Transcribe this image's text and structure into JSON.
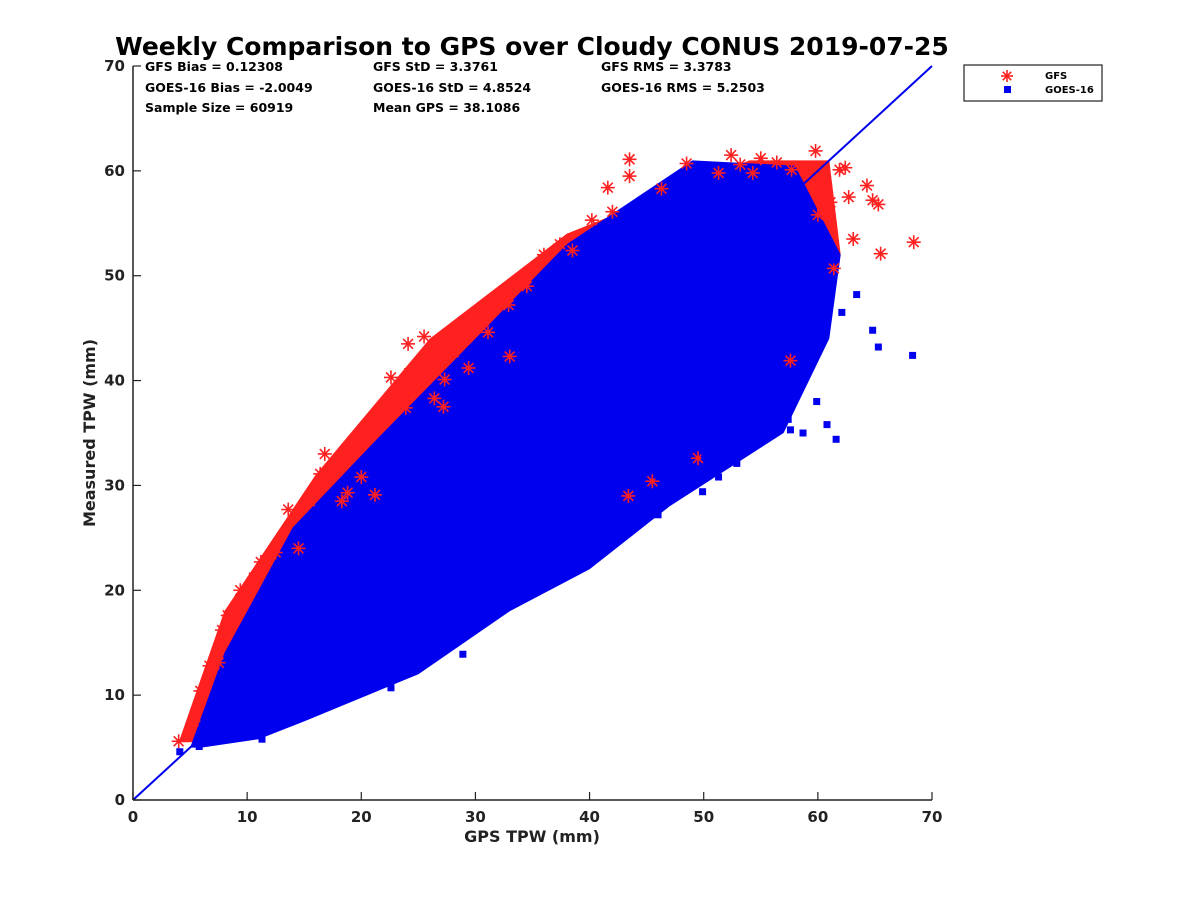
{
  "chart_data": {
    "type": "scatter",
    "title": "Weekly Comparison to GPS over Cloudy CONUS 2019-07-25",
    "xlabel": "GPS TPW (mm)",
    "ylabel": "Measured TPW (mm)",
    "xlim": [
      0,
      70
    ],
    "ylim": [
      0,
      70
    ],
    "x_ticks": [
      "0",
      "10",
      "20",
      "30",
      "40",
      "50",
      "60",
      "70"
    ],
    "y_ticks": [
      "0",
      "10",
      "20",
      "30",
      "40",
      "50",
      "60",
      "70"
    ],
    "grid": false,
    "legend_position": "outside top-right",
    "reference_line": {
      "x": [
        0,
        70
      ],
      "y": [
        0,
        70
      ],
      "color": "#0000ee"
    },
    "stats": {
      "gfs_bias": "GFS Bias = 0.12308",
      "goes_bias": "GOES-16 Bias = -2.0049",
      "sample_size": "Sample Size = 60919",
      "gfs_std": "GFS StD = 3.3761",
      "goes_std": "GOES-16 StD = 4.8524",
      "mean_gps": "Mean GPS = 38.1086",
      "gfs_rms": "GFS RMS = 3.3783",
      "goes_rms": "GOES-16 RMS = 5.2503"
    },
    "series": [
      {
        "name": "GFS",
        "marker": "asterisk",
        "color": "#ff2020",
        "cloud": [
          [
            [
              4,
              5.5
            ],
            [
              8,
              18
            ],
            [
              16,
              31
            ],
            [
              26,
              44
            ],
            [
              38,
              54
            ],
            [
              54,
              61
            ],
            [
              61,
              61
            ],
            [
              62,
              52
            ],
            [
              58,
              42
            ],
            [
              46,
              30
            ],
            [
              36,
              22
            ],
            [
              24,
              12
            ],
            [
              10,
              6
            ],
            [
              5,
              5.5
            ]
          ]
        ],
        "x": [
          4.0,
          5.3,
          5.9,
          6.7,
          7.5,
          8.3,
          7.8,
          9.4,
          10.6,
          11.2,
          12.5,
          13.6,
          14.5,
          15.5,
          16.4,
          16.8,
          18.8,
          20.0,
          21.6,
          22.6,
          24.1,
          23.9,
          25.5,
          26.6,
          27.3,
          28.1,
          29.4,
          31.1,
          32.9,
          34.5,
          36.0,
          37.4,
          40.2,
          41.6,
          42.0,
          43.5,
          43.5,
          46.3,
          48.5,
          51.3,
          52.4,
          53.2,
          54.3,
          55.0,
          56.4,
          57.7,
          59.8,
          60.5,
          61.1,
          61.9,
          62.4,
          62.7,
          63.1,
          64.3,
          64.8,
          65.3,
          65.5,
          68.4,
          61.4,
          60.0,
          57.6,
          43.4,
          45.5,
          49.5,
          38.5,
          24.2,
          18.3,
          21.2,
          27.2,
          26.4,
          33.0
        ],
        "y": [
          5.6,
          7.5,
          10.4,
          12.8,
          13.1,
          17.6,
          16.2,
          20.0,
          21.2,
          22.7,
          23.6,
          27.7,
          24.0,
          28.5,
          31.1,
          33.0,
          29.3,
          30.8,
          37.0,
          40.3,
          43.5,
          37.4,
          44.2,
          42.2,
          40.1,
          42.7,
          41.2,
          44.6,
          47.2,
          49.0,
          52.0,
          53.0,
          55.3,
          58.4,
          56.1,
          61.1,
          59.5,
          58.3,
          60.7,
          59.8,
          61.5,
          60.6,
          59.8,
          61.2,
          60.8,
          60.1,
          61.9,
          58.5,
          57.0,
          60.1,
          60.3,
          57.5,
          53.5,
          58.6,
          57.2,
          56.8,
          52.1,
          53.2,
          50.7,
          55.8,
          41.9,
          29.0,
          30.4,
          32.6,
          52.4,
          40.7,
          28.5,
          29.1,
          37.5,
          38.3,
          42.3
        ]
      },
      {
        "name": "GOES-16",
        "marker": "square",
        "color": "#0000ee",
        "cloud": [
          [
            [
              5,
              5
            ],
            [
              8,
              14
            ],
            [
              14,
              26
            ],
            [
              21,
              34
            ],
            [
              30,
              44
            ],
            [
              38,
              53
            ],
            [
              49,
              61
            ],
            [
              58,
              60.5
            ],
            [
              62,
              52
            ],
            [
              61,
              44
            ],
            [
              57,
              35
            ],
            [
              47,
              28
            ],
            [
              40,
              22
            ],
            [
              33,
              18
            ],
            [
              25,
              12
            ],
            [
              15,
              7.5
            ],
            [
              11,
              5.8
            ],
            [
              6,
              5
            ]
          ]
        ],
        "x": [
          4.1,
          5.8,
          8.5,
          11.3,
          12.1,
          13.9,
          16.6,
          17.2,
          19.0,
          22.6,
          24.1,
          25.7,
          28.9,
          30.2,
          32.1,
          33.6,
          35.1,
          37.2,
          38.9,
          40.4,
          42.0,
          44.2,
          46.0,
          47.8,
          49.9,
          51.3,
          52.9,
          54.2,
          55.9,
          57.4,
          58.7,
          59.9,
          60.8,
          61.6,
          62.1,
          63.4,
          64.8,
          65.3,
          68.3,
          61.2,
          60.1,
          57.7,
          55.3,
          52.6,
          49.8,
          46.0,
          45.9,
          43.5,
          40.5,
          38.2,
          36.7,
          34.0,
          30.2,
          28.7,
          26.3,
          23.6,
          22.3,
          20.4,
          18.0,
          16.3,
          14.3,
          12.2,
          11.2,
          9.5,
          47.3,
          50.1,
          53.6,
          57.6
        ],
        "y": [
          4.6,
          5.1,
          6.3,
          5.8,
          7.4,
          8.9,
          9.9,
          11.8,
          12.1,
          10.7,
          13.5,
          13.7,
          13.9,
          16.5,
          19.0,
          21.3,
          20.7,
          22.9,
          22.5,
          24.5,
          25.2,
          26.8,
          27.2,
          30.5,
          29.4,
          30.8,
          32.1,
          33.6,
          35.1,
          36.3,
          35.0,
          38.0,
          35.8,
          34.4,
          46.5,
          48.2,
          44.8,
          43.2,
          42.4,
          51.5,
          50.7,
          50.3,
          46.2,
          39.3,
          36.5,
          28.8,
          31.0,
          27.6,
          33.2,
          29.8,
          28.0,
          25.1,
          24.8,
          22.7,
          17.9,
          15.8,
          13.1,
          12.7,
          12.3,
          8.6,
          9.6,
          9.0,
          6.7,
          6.9,
          29.4,
          32.8,
          34.9,
          35.3
        ]
      }
    ]
  }
}
